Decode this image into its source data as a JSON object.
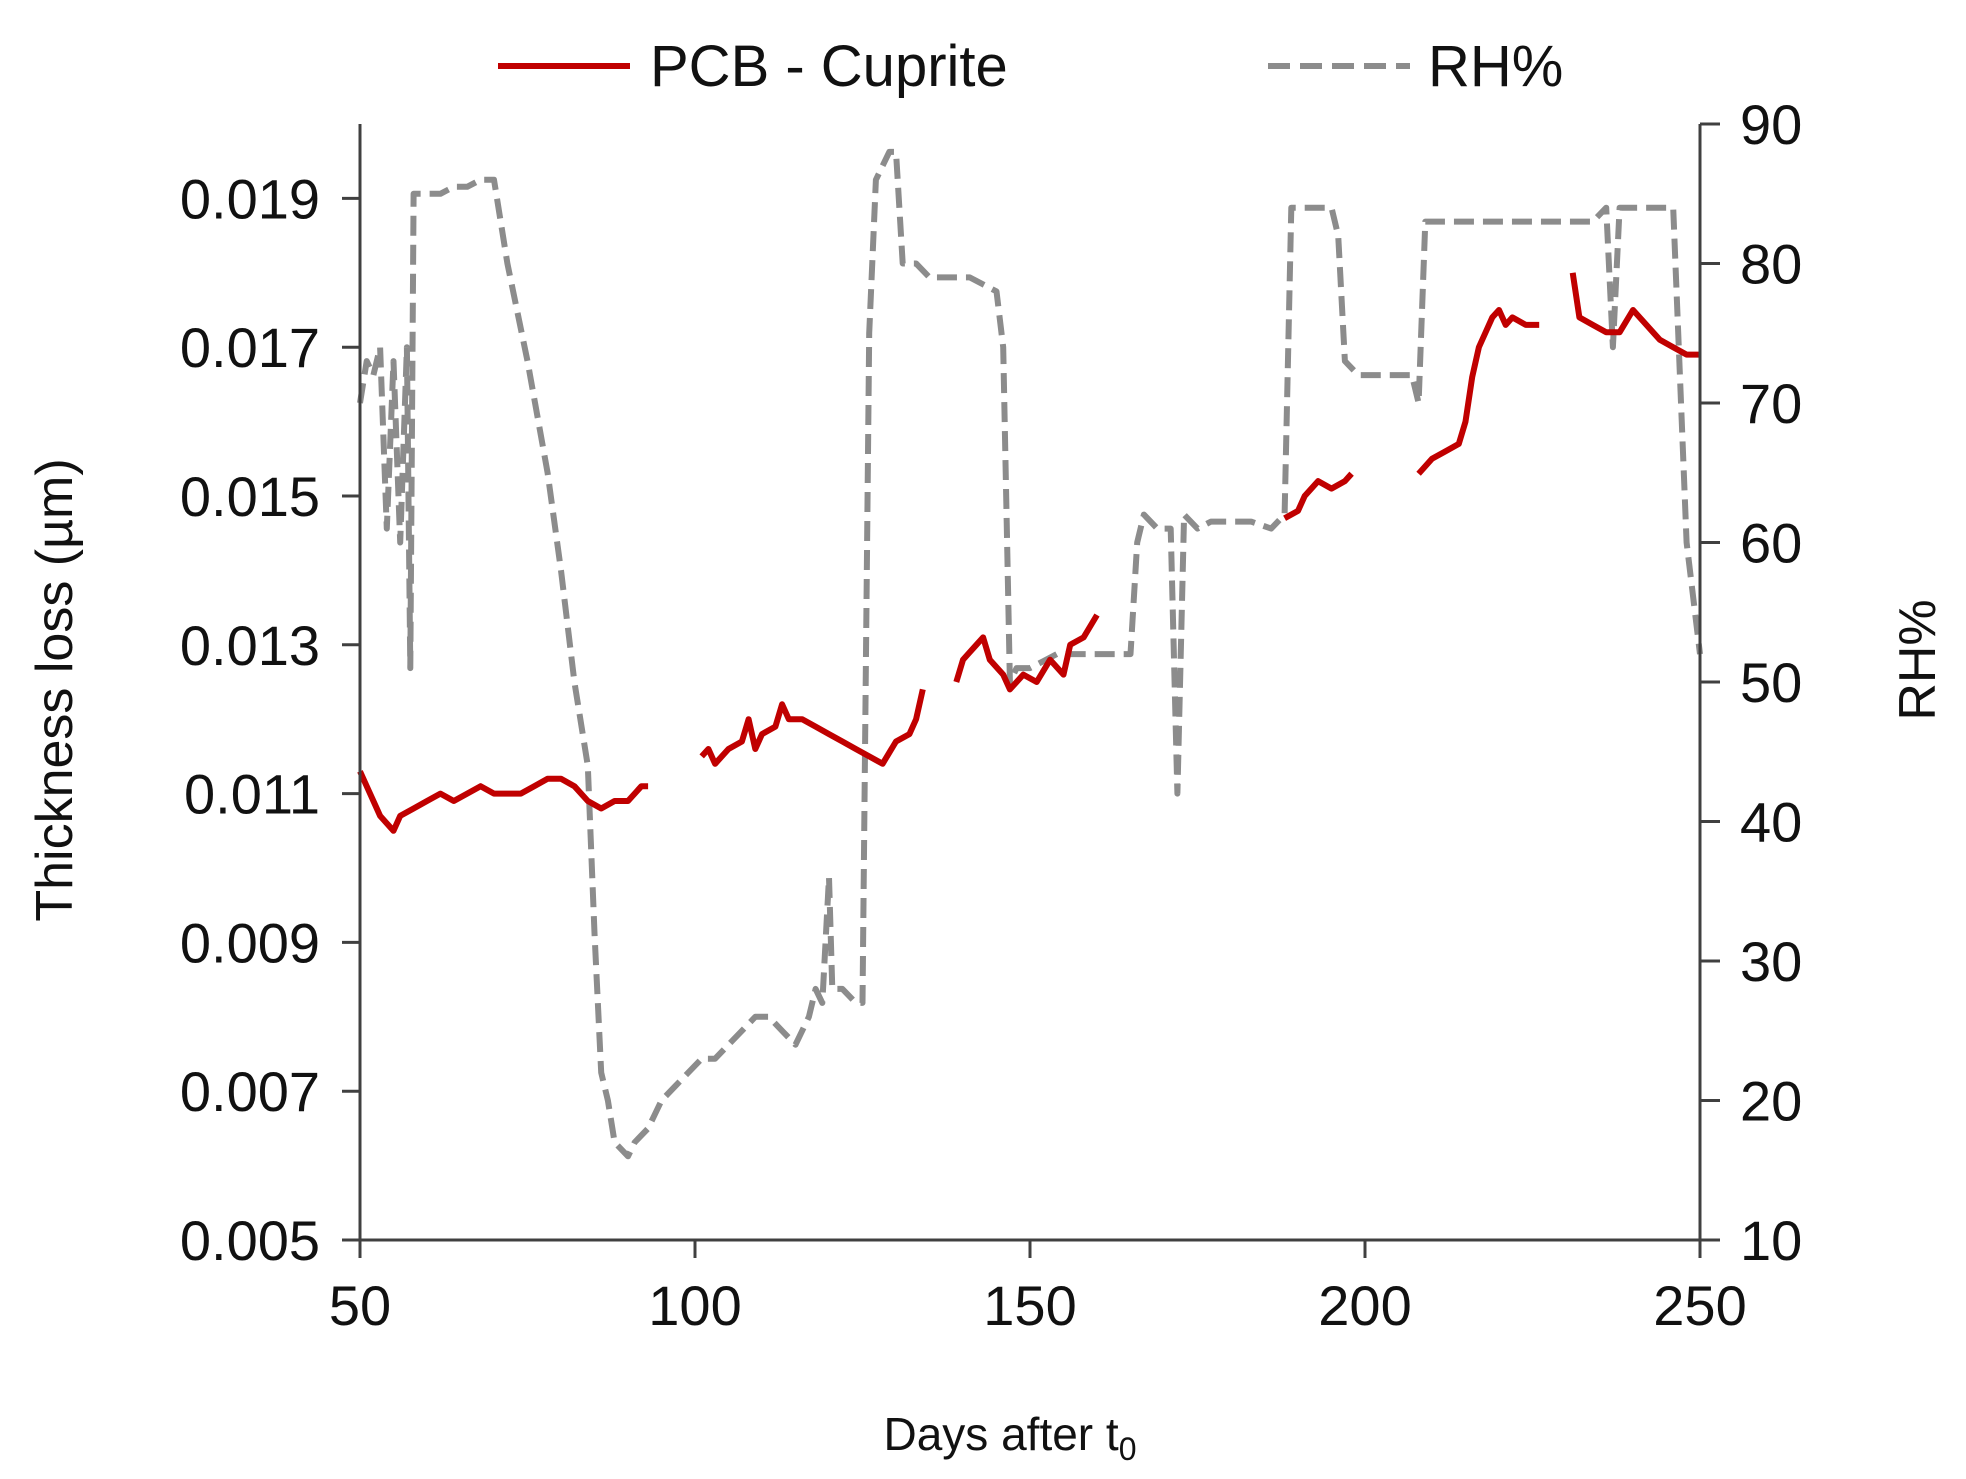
{
  "chart_data": {
    "type": "line",
    "title": "",
    "xlabel": "Days after t",
    "xlabel_subscript": "0",
    "ylabel_left": "Thickness loss (µm)",
    "ylabel_right": "RH%",
    "xlim": [
      50,
      250
    ],
    "ylim_left": [
      0.005,
      0.02
    ],
    "ylim_right": [
      10,
      90
    ],
    "x_ticks": [
      50,
      100,
      150,
      200,
      250
    ],
    "x_tick_labels": [
      "50",
      "100",
      "150",
      "200",
      "250"
    ],
    "y_left_ticks": [
      0.005,
      0.007,
      0.009,
      0.011,
      0.013,
      0.015,
      0.017,
      0.019
    ],
    "y_left_tick_labels": [
      "0.005",
      "0.007",
      "0.009",
      "0.011",
      "0.013",
      "0.015",
      "0.017",
      "0.019"
    ],
    "y_right_ticks": [
      10,
      20,
      30,
      40,
      50,
      60,
      70,
      80,
      90
    ],
    "y_right_tick_labels": [
      "10",
      "20",
      "30",
      "40",
      "50",
      "60",
      "70",
      "80",
      "90"
    ],
    "grid": false,
    "legend_position": "top",
    "series": [
      {
        "name": "PCB - Cuprite",
        "axis": "left",
        "color": "#c00000",
        "style": "solid",
        "segments": [
          [
            [
              50,
              0.0113
            ],
            [
              51,
              0.0111
            ],
            [
              52,
              0.0109
            ],
            [
              53,
              0.0107
            ],
            [
              54,
              0.0106
            ],
            [
              55,
              0.0105
            ],
            [
              56,
              0.0107
            ],
            [
              58,
              0.0108
            ],
            [
              60,
              0.0109
            ],
            [
              62,
              0.011
            ],
            [
              64,
              0.0109
            ],
            [
              66,
              0.011
            ],
            [
              68,
              0.0111
            ],
            [
              70,
              0.011
            ],
            [
              72,
              0.011
            ],
            [
              74,
              0.011
            ],
            [
              76,
              0.0111
            ],
            [
              78,
              0.0112
            ],
            [
              80,
              0.0112
            ],
            [
              82,
              0.0111
            ],
            [
              84,
              0.0109
            ],
            [
              86,
              0.0108
            ],
            [
              88,
              0.0109
            ],
            [
              90,
              0.0109
            ],
            [
              92,
              0.0111
            ],
            [
              93,
              0.0111
            ]
          ],
          [
            [
              101,
              0.0115
            ],
            [
              102,
              0.0116
            ],
            [
              103,
              0.0114
            ],
            [
              105,
              0.0116
            ],
            [
              107,
              0.0117
            ],
            [
              108,
              0.012
            ],
            [
              109,
              0.0116
            ],
            [
              110,
              0.0118
            ],
            [
              112,
              0.0119
            ],
            [
              113,
              0.0122
            ],
            [
              114,
              0.012
            ],
            [
              116,
              0.012
            ],
            [
              118,
              0.0119
            ],
            [
              120,
              0.0118
            ],
            [
              122,
              0.0117
            ],
            [
              124,
              0.0116
            ],
            [
              126,
              0.0115
            ],
            [
              128,
              0.0114
            ],
            [
              130,
              0.0117
            ],
            [
              132,
              0.0118
            ],
            [
              133,
              0.012
            ],
            [
              134,
              0.0124
            ]
          ],
          [
            [
              139,
              0.0125
            ],
            [
              140,
              0.0128
            ],
            [
              141,
              0.0129
            ],
            [
              142,
              0.013
            ],
            [
              143,
              0.0131
            ],
            [
              144,
              0.0128
            ],
            [
              146,
              0.0126
            ],
            [
              147,
              0.0124
            ],
            [
              149,
              0.0126
            ],
            [
              151,
              0.0125
            ],
            [
              153,
              0.0128
            ],
            [
              155,
              0.0126
            ],
            [
              156,
              0.013
            ],
            [
              158,
              0.0131
            ],
            [
              160,
              0.0134
            ]
          ],
          [
            [
              188,
              0.0147
            ],
            [
              190,
              0.0148
            ],
            [
              191,
              0.015
            ],
            [
              193,
              0.0152
            ],
            [
              195,
              0.0151
            ],
            [
              197,
              0.0152
            ],
            [
              198,
              0.0153
            ]
          ],
          [
            [
              208,
              0.0153
            ],
            [
              210,
              0.0155
            ],
            [
              212,
              0.0156
            ],
            [
              214,
              0.0157
            ],
            [
              215,
              0.016
            ],
            [
              216,
              0.0166
            ],
            [
              217,
              0.017
            ],
            [
              218,
              0.0172
            ],
            [
              219,
              0.0174
            ],
            [
              220,
              0.0175
            ],
            [
              221,
              0.0173
            ],
            [
              222,
              0.0174
            ],
            [
              224,
              0.0173
            ],
            [
              226,
              0.0173
            ]
          ],
          [
            [
              231,
              0.018
            ],
            [
              232,
              0.0174
            ],
            [
              234,
              0.0173
            ],
            [
              236,
              0.0172
            ],
            [
              238,
              0.0172
            ],
            [
              240,
              0.0175
            ],
            [
              242,
              0.0173
            ],
            [
              244,
              0.0171
            ],
            [
              246,
              0.017
            ],
            [
              248,
              0.0169
            ],
            [
              250,
              0.0169
            ]
          ]
        ]
      },
      {
        "name": "RH%",
        "axis": "right",
        "color": "#8c8c8c",
        "style": "dashed",
        "segments": [
          [
            [
              50,
              70
            ],
            [
              51,
              73
            ],
            [
              52,
              72
            ],
            [
              53,
              74
            ],
            [
              54,
              61
            ],
            [
              55,
              73
            ],
            [
              56,
              60
            ],
            [
              57,
              74
            ],
            [
              57.5,
              51
            ],
            [
              58,
              85
            ],
            [
              60,
              85
            ],
            [
              62,
              85
            ],
            [
              64,
              85.5
            ],
            [
              66,
              85.5
            ],
            [
              68,
              86
            ],
            [
              70,
              86
            ],
            [
              72,
              80
            ],
            [
              75,
              73
            ],
            [
              78,
              65
            ],
            [
              80,
              58
            ],
            [
              82,
              50
            ],
            [
              84,
              44
            ],
            [
              85,
              32
            ],
            [
              86,
              22
            ],
            [
              87,
              20
            ],
            [
              88,
              17
            ],
            [
              90,
              16
            ],
            [
              91,
              17
            ],
            [
              93,
              18
            ],
            [
              94,
              19
            ],
            [
              95,
              20
            ],
            [
              97,
              21
            ],
            [
              99,
              22
            ],
            [
              101,
              23
            ],
            [
              103,
              23
            ],
            [
              105,
              24
            ],
            [
              107,
              25
            ],
            [
              109,
              26
            ],
            [
              111,
              26
            ],
            [
              113,
              25
            ],
            [
              115,
              24
            ],
            [
              117,
              26
            ],
            [
              118,
              28
            ],
            [
              119,
              27
            ],
            [
              120,
              36
            ],
            [
              120.5,
              28
            ],
            [
              122,
              28
            ],
            [
              124,
              27
            ],
            [
              125,
              27
            ],
            [
              126,
              75
            ],
            [
              127,
              86
            ],
            [
              129,
              88
            ],
            [
              130,
              88
            ],
            [
              131,
              80
            ],
            [
              133,
              80
            ],
            [
              135,
              79
            ],
            [
              137,
              79
            ],
            [
              139,
              79
            ],
            [
              141,
              79
            ],
            [
              143,
              78.5
            ],
            [
              145,
              78
            ],
            [
              146,
              74
            ],
            [
              147,
              50
            ],
            [
              148,
              51
            ],
            [
              150,
              51
            ],
            [
              152,
              51.5
            ],
            [
              154,
              52
            ],
            [
              158,
              52
            ],
            [
              162,
              52
            ],
            [
              165,
              52
            ],
            [
              166,
              60
            ],
            [
              167,
              62
            ],
            [
              169,
              61
            ],
            [
              171,
              61
            ],
            [
              172,
              42
            ],
            [
              173,
              62
            ],
            [
              175,
              61
            ],
            [
              177,
              61.5
            ],
            [
              180,
              61.5
            ],
            [
              183,
              61.5
            ],
            [
              186,
              61
            ],
            [
              188,
              62
            ],
            [
              189,
              84
            ],
            [
              191,
              84
            ],
            [
              193,
              84
            ],
            [
              195,
              84
            ],
            [
              196,
              82
            ],
            [
              197,
              73
            ],
            [
              199,
              72
            ],
            [
              201,
              72
            ],
            [
              203,
              72
            ],
            [
              205,
              72
            ],
            [
              207,
              72
            ],
            [
              208,
              70
            ],
            [
              209,
              83
            ],
            [
              211,
              83
            ],
            [
              213,
              83
            ],
            [
              215,
              83
            ],
            [
              218,
              83
            ],
            [
              221,
              83
            ],
            [
              224,
              83
            ],
            [
              227,
              83
            ],
            [
              230,
              83
            ],
            [
              232,
              83
            ],
            [
              234,
              83
            ],
            [
              236,
              84
            ],
            [
              237,
              74
            ],
            [
              238,
              84
            ],
            [
              240,
              84
            ],
            [
              242,
              84
            ],
            [
              244,
              84
            ],
            [
              246,
              84
            ],
            [
              247,
              72
            ],
            [
              248,
              60
            ],
            [
              249,
              56
            ],
            [
              250,
              52
            ]
          ]
        ]
      }
    ]
  }
}
